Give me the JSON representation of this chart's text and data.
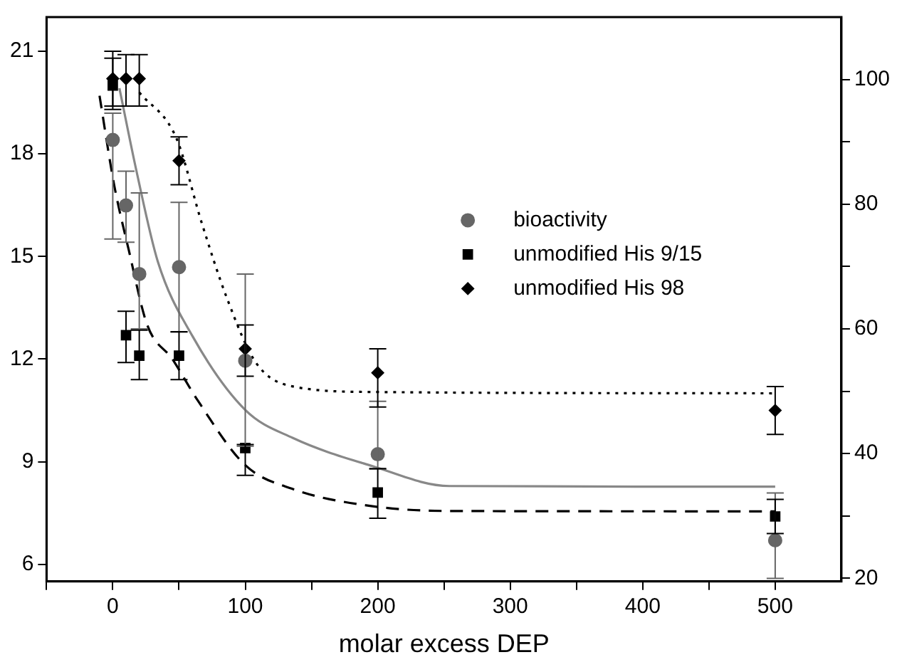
{
  "chart_data": {
    "type": "scatter",
    "xlabel": "molar excess DEP",
    "xlim": [
      -50,
      550
    ],
    "xticks": [
      {
        "value": -50,
        "label": null
      },
      0,
      {
        "value": 50,
        "label": null
      },
      100,
      {
        "value": 150,
        "label": null
      },
      200,
      {
        "value": 250,
        "label": null
      },
      300,
      {
        "value": 350,
        "label": null
      },
      400,
      {
        "value": 450,
        "label": null
      },
      500
    ],
    "ylim": [
      5.5,
      22
    ],
    "yticks": [
      6,
      9,
      12,
      15,
      18,
      21
    ],
    "y2lim": [
      19.5,
      110
    ],
    "y2ticks": [
      20,
      {
        "value": 30,
        "label": null
      },
      40,
      {
        "value": 50,
        "label": null
      },
      60,
      {
        "value": 70,
        "label": null
      },
      80,
      {
        "value": 90,
        "label": null
      },
      100
    ],
    "grid": false,
    "legend": "right",
    "series": [
      {
        "name": "bioactivity",
        "type": "scatter",
        "axis": "y2",
        "marker": "circle",
        "color": "#666666",
        "x": [
          0,
          10,
          20,
          50,
          100,
          200,
          500
        ],
        "values": [
          90.3,
          79.8,
          68.8,
          69.9,
          54.9,
          39.9,
          26.1
        ],
        "errors": [
          [
            74.4,
            94.6
          ],
          [
            73.9,
            85.3
          ],
          [
            60,
            81.8
          ],
          [
            59.5,
            80.3
          ],
          [
            41.2,
            68.8
          ],
          [
            37.5,
            48.4
          ],
          [
            20,
            33.7
          ]
        ]
      },
      {
        "name": "unmodified His 9/15",
        "type": "scatter",
        "marker": "square",
        "color": "#000000",
        "x": [
          0,
          10,
          20,
          50,
          100,
          200,
          500
        ],
        "values": [
          20.0,
          12.7,
          12.1,
          12.1,
          9.4,
          8.1,
          7.4
        ],
        "errors": [
          [
            19.4,
            20.8
          ],
          [
            11.9,
            13.4
          ],
          [
            11.4,
            12.85
          ],
          [
            11.4,
            12.8
          ],
          [
            8.6,
            9.5
          ],
          [
            7.35,
            8.8
          ],
          [
            6.9,
            7.9
          ]
        ]
      },
      {
        "name": "unmodified His 98",
        "type": "scatter",
        "marker": "diamond",
        "color": "#000000",
        "x": [
          0,
          10,
          20,
          50,
          100,
          200,
          500
        ],
        "values": [
          20.2,
          20.2,
          20.2,
          17.8,
          12.3,
          11.6,
          10.5
        ],
        "errors": [
          [
            19.3,
            21.0
          ],
          [
            19.4,
            20.9
          ],
          [
            19.4,
            20.9
          ],
          [
            17.1,
            18.5
          ],
          [
            11.5,
            13.0
          ],
          [
            10.6,
            12.3
          ],
          [
            9.8,
            11.2
          ]
        ]
      },
      {
        "type": "line",
        "axis": "y2",
        "line_style": "solid",
        "marker": "none",
        "color": "#888888",
        "x": [
          5,
          18,
          34,
          60,
          100,
          136,
          196,
          254,
          500
        ],
        "values": [
          98.6,
          85.2,
          70.8,
          58.9,
          47,
          42.5,
          38.0,
          34.8,
          34.7
        ]
      },
      {
        "type": "line",
        "line_style": "dashed",
        "marker": "none",
        "color": "#000000",
        "x": [
          -10,
          1,
          12,
          26,
          45,
          64,
          100,
          136,
          196,
          254,
          500
        ],
        "values": [
          19.7,
          17.1,
          15.2,
          13.0,
          12.0,
          10.8,
          8.9,
          8.2,
          7.7,
          7.56,
          7.55
        ]
      },
      {
        "type": "line",
        "line_style": "dotted",
        "marker": "none",
        "color": "#000000",
        "x": [
          20,
          48,
          67,
          86,
          108,
          136,
          196,
          500
        ],
        "values": [
          19.8,
          18.46,
          16.0,
          13.8,
          11.9,
          11.2,
          11.04,
          11.0
        ]
      }
    ]
  }
}
